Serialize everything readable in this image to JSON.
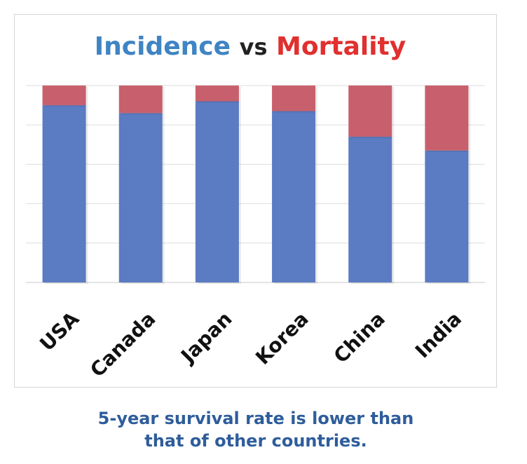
{
  "chart_data": {
    "type": "bar",
    "stacked": true,
    "title_parts": [
      "Incidence",
      "vs",
      "Mortality"
    ],
    "colors": {
      "incidence": "#5b7bc2",
      "mortality": "#c7606c",
      "title_incidence": "#3f84c3",
      "title_mortality": "#e0302f"
    },
    "categories": [
      "USA",
      "Canada",
      "Japan",
      "Korea",
      "China",
      "India"
    ],
    "series": [
      {
        "key": "incidence",
        "values": [
          90,
          86,
          92,
          87,
          74,
          67
        ]
      },
      {
        "key": "mortality",
        "values": [
          10,
          14,
          8,
          13,
          26,
          33
        ]
      }
    ],
    "ylim": [
      0,
      100
    ],
    "grid": true,
    "legend": "none"
  },
  "caption": {
    "line1": "5-year survival rate is lower than",
    "line2": "that of other countries."
  }
}
